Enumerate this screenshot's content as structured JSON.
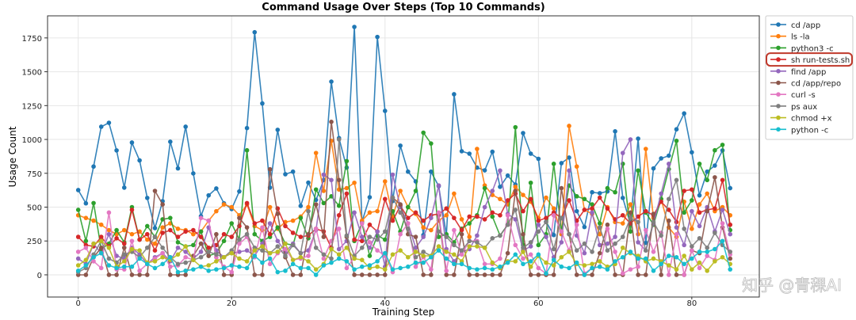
{
  "watermark": "知乎 @青稞AI",
  "chart_data": {
    "type": "line",
    "title": "Command Usage Over Steps (Top 10 Commands)",
    "xlabel": "Training Step",
    "ylabel": "Usage Count",
    "xlim": [
      -4,
      88.8
    ],
    "ylim": [
      -164,
      1913
    ],
    "xticks": [
      0,
      20,
      40,
      60,
      80
    ],
    "yticks": [
      0,
      250,
      500,
      750,
      1000,
      1250,
      1500,
      1750
    ],
    "grid": true,
    "legend_position": "outside-right",
    "highlighted_legend_entry": "sh run-tests.sh",
    "highlight_color": "#c0392b",
    "x_start": 0,
    "series": [
      {
        "name": "cd /app",
        "color": "#1f77b4",
        "values": [
          626,
          528,
          800,
          1094,
          1123,
          919,
          644,
          977,
          845,
          568,
          345,
          544,
          983,
          786,
          1094,
          749,
          433,
          587,
          638,
          528,
          486,
          616,
          1084,
          1792,
          1266,
          644,
          1071,
          743,
          762,
          509,
          681,
          553,
          700,
          1427,
          1010,
          792,
          1831,
          392,
          573,
          1757,
          1211,
          545,
          954,
          762,
          690,
          294,
          762,
          655,
          294,
          1334,
          913,
          895,
          792,
          772,
          909,
          650,
          733,
          667,
          1047,
          895,
          857,
          392,
          294,
          825,
          866,
          470,
          353,
          610,
          603,
          616,
          1060,
          568,
          374,
          1006,
          236,
          786,
          860,
          880,
          1075,
          1192,
          905,
          587,
          762,
          807,
          919,
          640
        ]
      },
      {
        "name": "ls -la",
        "color": "#ff7f0e",
        "values": [
          440,
          420,
          400,
          370,
          330,
          300,
          330,
          300,
          320,
          260,
          230,
          350,
          380,
          340,
          330,
          300,
          320,
          400,
          470,
          520,
          500,
          440,
          520,
          360,
          330,
          500,
          340,
          390,
          400,
          430,
          500,
          900,
          620,
          990,
          630,
          640,
          680,
          400,
          460,
          470,
          690,
          430,
          620,
          500,
          450,
          350,
          330,
          400,
          440,
          600,
          410,
          280,
          930,
          660,
          590,
          560,
          520,
          650,
          590,
          540,
          420,
          570,
          490,
          300,
          1100,
          800,
          480,
          450,
          300,
          500,
          390,
          380,
          520,
          300,
          930,
          420,
          560,
          350,
          280,
          540,
          340,
          520,
          600,
          470,
          500,
          440
        ]
      },
      {
        "name": "python3 -c",
        "color": "#2ca02c",
        "values": [
          480,
          250,
          530,
          190,
          230,
          330,
          240,
          500,
          260,
          360,
          280,
          410,
          420,
          240,
          210,
          220,
          320,
          140,
          160,
          250,
          380,
          260,
          920,
          300,
          250,
          280,
          350,
          230,
          220,
          420,
          270,
          630,
          530,
          580,
          510,
          840,
          250,
          380,
          140,
          290,
          260,
          470,
          320,
          500,
          620,
          1050,
          970,
          280,
          300,
          240,
          340,
          380,
          440,
          640,
          430,
          290,
          370,
          1090,
          220,
          680,
          220,
          300,
          820,
          320,
          660,
          580,
          560,
          520,
          380,
          640,
          610,
          820,
          320,
          770,
          460,
          370,
          560,
          780,
          990,
          460,
          550,
          820,
          700,
          920,
          960,
          330
        ]
      },
      {
        "name": "sh run-tests.sh",
        "color": "#d62728",
        "values": [
          280,
          220,
          210,
          280,
          210,
          270,
          230,
          480,
          260,
          300,
          180,
          310,
          330,
          280,
          320,
          330,
          280,
          200,
          220,
          300,
          280,
          360,
          530,
          380,
          400,
          300,
          490,
          360,
          310,
          280,
          290,
          340,
          320,
          200,
          440,
          600,
          260,
          250,
          370,
          320,
          560,
          400,
          510,
          420,
          460,
          400,
          440,
          450,
          490,
          420,
          330,
          430,
          430,
          410,
          460,
          440,
          550,
          600,
          470,
          560,
          400,
          420,
          460,
          420,
          550,
          400,
          480,
          490,
          570,
          490,
          410,
          440,
          380,
          430,
          470,
          440,
          540,
          480,
          390,
          620,
          630,
          460,
          480,
          490,
          700,
          370
        ]
      },
      {
        "name": "find /app",
        "color": "#9467bd",
        "values": [
          120,
          80,
          230,
          160,
          300,
          140,
          120,
          200,
          150,
          80,
          130,
          160,
          100,
          200,
          170,
          120,
          170,
          350,
          180,
          130,
          160,
          170,
          180,
          140,
          230,
          380,
          250,
          170,
          230,
          160,
          180,
          330,
          740,
          700,
          190,
          250,
          460,
          280,
          200,
          320,
          60,
          740,
          500,
          380,
          200,
          280,
          420,
          660,
          190,
          100,
          170,
          190,
          290,
          500,
          620,
          770,
          450,
          410,
          180,
          210,
          370,
          280,
          130,
          240,
          770,
          290,
          160,
          460,
          220,
          230,
          280,
          900,
          1000,
          240,
          180,
          380,
          600,
          820,
          350,
          220,
          470,
          360,
          500,
          320,
          480,
          300
        ]
      },
      {
        "name": "cd /app/repo",
        "color": "#8c564b",
        "values": [
          0,
          0,
          130,
          200,
          0,
          0,
          200,
          0,
          0,
          0,
          620,
          520,
          0,
          0,
          0,
          140,
          230,
          140,
          300,
          0,
          0,
          420,
          350,
          0,
          0,
          780,
          450,
          130,
          0,
          0,
          300,
          520,
          280,
          1130,
          700,
          280,
          0,
          0,
          0,
          0,
          0,
          570,
          520,
          300,
          280,
          0,
          0,
          440,
          0,
          0,
          300,
          0,
          0,
          0,
          0,
          0,
          160,
          620,
          300,
          0,
          0,
          0,
          0,
          640,
          300,
          0,
          0,
          0,
          160,
          370,
          0,
          0,
          460,
          0,
          0,
          450,
          0,
          400,
          0,
          0,
          180,
          160,
          470,
          720,
          350,
          120
        ]
      },
      {
        "name": "curl -s",
        "color": "#e377c2",
        "values": [
          170,
          200,
          100,
          50,
          460,
          40,
          40,
          250,
          30,
          80,
          120,
          160,
          60,
          70,
          130,
          110,
          420,
          400,
          130,
          60,
          20,
          230,
          280,
          130,
          350,
          80,
          160,
          190,
          110,
          120,
          140,
          340,
          120,
          250,
          340,
          50,
          130,
          380,
          240,
          180,
          140,
          20,
          300,
          380,
          60,
          130,
          40,
          460,
          30,
          330,
          150,
          250,
          250,
          80,
          80,
          120,
          440,
          220,
          120,
          150,
          50,
          10,
          440,
          320,
          180,
          370,
          10,
          50,
          60,
          340,
          170,
          10,
          40,
          60,
          330,
          170,
          310,
          0,
          300,
          0,
          180,
          50,
          140,
          110,
          380,
          150
        ]
      },
      {
        "name": "ps aux",
        "color": "#7f7f7f",
        "values": [
          20,
          50,
          150,
          250,
          120,
          90,
          150,
          170,
          130,
          200,
          280,
          200,
          130,
          80,
          90,
          110,
          130,
          170,
          150,
          130,
          180,
          260,
          300,
          200,
          180,
          160,
          210,
          140,
          220,
          160,
          470,
          200,
          150,
          120,
          1000,
          290,
          140,
          200,
          280,
          260,
          320,
          570,
          460,
          340,
          130,
          170,
          140,
          320,
          280,
          220,
          180,
          250,
          240,
          200,
          270,
          290,
          370,
          480,
          200,
          240,
          320,
          390,
          190,
          420,
          300,
          180,
          230,
          170,
          350,
          180,
          230,
          280,
          420,
          390,
          180,
          390,
          290,
          560,
          700,
          340,
          210,
          270,
          200,
          310,
          220,
          170
        ]
      },
      {
        "name": "chmod +x",
        "color": "#bcbd22",
        "values": [
          70,
          110,
          230,
          250,
          200,
          60,
          100,
          190,
          180,
          90,
          100,
          130,
          110,
          150,
          210,
          110,
          60,
          70,
          100,
          130,
          160,
          120,
          100,
          180,
          210,
          160,
          170,
          230,
          110,
          130,
          100,
          40,
          80,
          190,
          150,
          200,
          120,
          110,
          50,
          60,
          40,
          150,
          180,
          130,
          170,
          140,
          140,
          210,
          170,
          150,
          100,
          210,
          210,
          200,
          90,
          50,
          100,
          100,
          170,
          60,
          140,
          90,
          70,
          130,
          170,
          80,
          70,
          80,
          100,
          60,
          80,
          200,
          160,
          140,
          100,
          120,
          100,
          70,
          40,
          140,
          40,
          90,
          30,
          100,
          130,
          80
        ]
      },
      {
        "name": "python -c",
        "color": "#17becf",
        "values": [
          30,
          70,
          130,
          160,
          70,
          50,
          60,
          60,
          120,
          80,
          50,
          80,
          130,
          20,
          30,
          40,
          60,
          30,
          40,
          50,
          70,
          60,
          50,
          140,
          90,
          120,
          20,
          30,
          80,
          50,
          50,
          0,
          70,
          90,
          120,
          100,
          40,
          60,
          70,
          100,
          160,
          40,
          50,
          60,
          90,
          90,
          130,
          180,
          120,
          80,
          80,
          50,
          40,
          50,
          40,
          60,
          90,
          150,
          80,
          100,
          150,
          10,
          110,
          60,
          50,
          90,
          0,
          50,
          60,
          40,
          100,
          130,
          170,
          120,
          120,
          30,
          80,
          140,
          130,
          80,
          120,
          170,
          170,
          190,
          250,
          40
        ]
      }
    ]
  }
}
